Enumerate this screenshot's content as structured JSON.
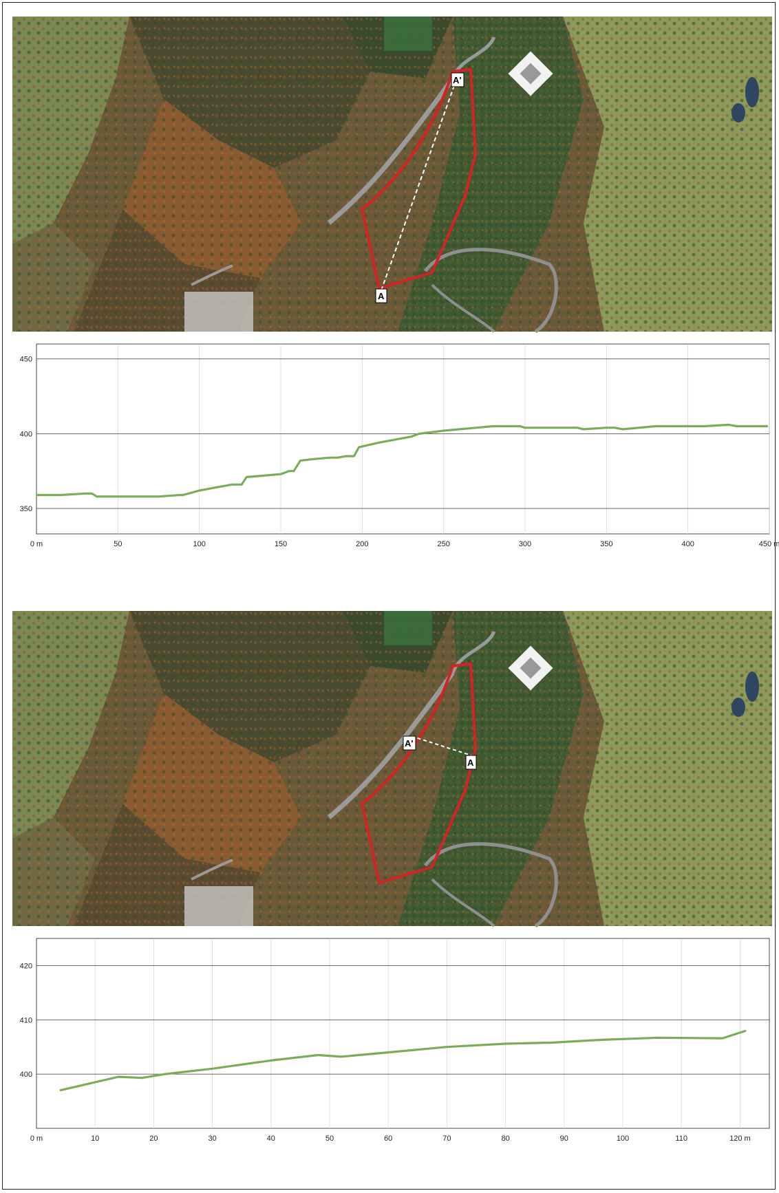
{
  "maps": [
    {
      "marker_start": "A",
      "marker_end": "A'"
    },
    {
      "marker_start": "A",
      "marker_end": "A'"
    }
  ],
  "chart_data": [
    {
      "type": "line",
      "title": "",
      "xlabel": "",
      "ylabel": "",
      "xlim": [
        0,
        450
      ],
      "ylim": [
        333,
        460
      ],
      "x_unit": "m",
      "x_ticks": [
        "0 m",
        "50",
        "100",
        "150",
        "200",
        "250",
        "300",
        "350",
        "400",
        "450 m"
      ],
      "y_ticks": [
        "350",
        "400",
        "450"
      ],
      "grid": true,
      "line_color": "#7aad5a",
      "series": [
        {
          "x": [
            0,
            15,
            30,
            34,
            37,
            50,
            60,
            70,
            75,
            88,
            90,
            100,
            110,
            120,
            126,
            129,
            140,
            150,
            155,
            158,
            162,
            170,
            180,
            185,
            190,
            195,
            198,
            210,
            220,
            230,
            235,
            250,
            270,
            280,
            290,
            297,
            300,
            320,
            332,
            336,
            350,
            355,
            360,
            380,
            390,
            395,
            410,
            425,
            430,
            449
          ],
          "y": [
            359,
            359,
            360,
            360,
            358,
            358,
            358,
            358,
            358,
            359,
            359,
            362,
            364,
            366,
            366,
            371,
            372,
            373,
            375,
            375,
            382,
            383,
            384,
            384,
            385,
            385,
            391,
            394,
            396,
            398,
            400,
            402,
            404,
            405,
            405,
            405,
            404,
            404,
            404,
            403,
            404,
            404,
            403,
            405,
            405,
            405,
            405,
            406,
            405,
            405
          ]
        }
      ]
    },
    {
      "type": "line",
      "title": "",
      "xlabel": "",
      "ylabel": "",
      "xlim": [
        0,
        125
      ],
      "ylim": [
        390,
        425
      ],
      "x_unit": "m",
      "x_ticks": [
        "0 m",
        "10",
        "20",
        "30",
        "40",
        "50",
        "60",
        "70",
        "80",
        "90",
        "100",
        "110",
        "120 m"
      ],
      "y_ticks": [
        "400",
        "410",
        "420"
      ],
      "grid": true,
      "line_color": "#7aad5a",
      "series": [
        {
          "x": [
            4,
            10,
            14,
            18,
            22,
            30,
            40,
            48,
            52,
            60,
            70,
            80,
            88,
            96,
            106,
            117,
            121
          ],
          "y": [
            397,
            398.5,
            399.5,
            399.3,
            400,
            401,
            402.5,
            403.5,
            403.2,
            404,
            405,
            405.6,
            405.8,
            406.3,
            406.7,
            406.6,
            408
          ]
        }
      ]
    }
  ]
}
